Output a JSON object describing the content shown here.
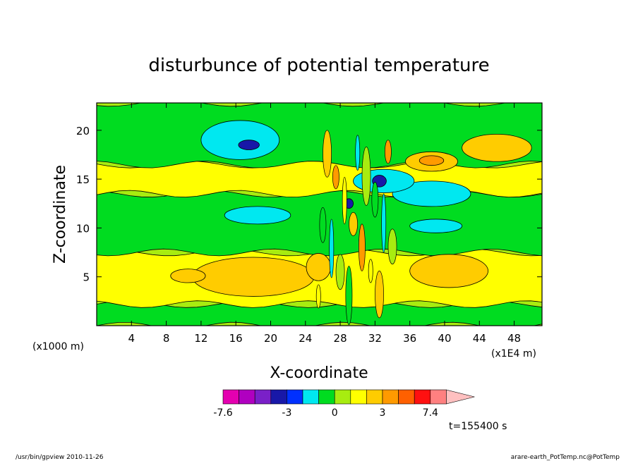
{
  "chart_data": {
    "type": "heatmap",
    "title": "disturbunce of potential temperature",
    "xlabel": "X-coordinate",
    "ylabel": "Z-coordinate",
    "x_unit_left": "(x1000 m)",
    "x_unit_right": "(x1E4 m)",
    "xlim": [
      0,
      51.2
    ],
    "ylim": [
      0,
      22.8
    ],
    "xticks": [
      4,
      8,
      12,
      16,
      20,
      24,
      28,
      32,
      36,
      40,
      44,
      48
    ],
    "yticks": [
      5,
      10,
      15,
      20
    ],
    "time_label": "t=155400 s",
    "colorbar": {
      "levels": [
        -7.6,
        -6.6,
        -5.6,
        -4.6,
        -3.0,
        -2.0,
        -1.0,
        0,
        1.0,
        2.0,
        3.0,
        4.0,
        5.0,
        7.4
      ],
      "tick_labels": [
        "-7.6",
        "-3",
        "0",
        "3",
        "7.4"
      ],
      "tick_values": [
        -7.6,
        -3,
        0,
        3,
        7.4
      ],
      "colors": [
        "#e400b0",
        "#b000c0",
        "#7a20c8",
        "#1818a8",
        "#0030ff",
        "#00e8f0",
        "#00dc20",
        "#a8ec10",
        "#ffff00",
        "#ffcc00",
        "#ff9a00",
        "#ff6000",
        "#ff1010",
        "#ff8080",
        "#ffc0c0"
      ]
    },
    "fields": {
      "background": {
        "value": 0.5,
        "color": "#a8ec10"
      },
      "bands": [
        {
          "z_range": [
            0,
            2.2
          ],
          "value": 0,
          "color": "#00dc20"
        },
        {
          "z_range": [
            2.2,
            7.5
          ],
          "value": 1.5,
          "color": "#ffff00"
        },
        {
          "z_range": [
            7.5,
            13.5
          ],
          "value": 0,
          "color": "#00dc20"
        },
        {
          "z_range": [
            13.5,
            16.5
          ],
          "value": 1.5,
          "color": "#ffff00"
        },
        {
          "z_range": [
            16.5,
            22.8
          ],
          "value": 0,
          "color": "#00dc20"
        }
      ],
      "blobs": [
        {
          "x": 18,
          "z": 5.0,
          "rx": 7.0,
          "rz": 2.0,
          "value": 2.2,
          "color": "#ffcc00"
        },
        {
          "x": 10.5,
          "z": 5.1,
          "rx": 2.0,
          "rz": 0.7,
          "value": 2.2,
          "color": "#ffcc00"
        },
        {
          "x": 40.5,
          "z": 5.6,
          "rx": 4.5,
          "rz": 1.7,
          "value": 2.2,
          "color": "#ffcc00"
        },
        {
          "x": 25.5,
          "z": 6.0,
          "rx": 1.4,
          "rz": 1.4,
          "value": 2.2,
          "color": "#ffcc00"
        },
        {
          "x": 16.5,
          "z": 19.0,
          "rx": 4.5,
          "rz": 2.0,
          "value": -1.5,
          "color": "#00e8f0"
        },
        {
          "x": 17.5,
          "z": 18.5,
          "rx": 1.2,
          "rz": 0.5,
          "value": -4.0,
          "color": "#1818a8"
        },
        {
          "x": 38.5,
          "z": 13.5,
          "rx": 4.5,
          "rz": 1.3,
          "value": -1.5,
          "color": "#00e8f0"
        },
        {
          "x": 39.0,
          "z": 10.2,
          "rx": 3.0,
          "rz": 0.7,
          "value": -1.5,
          "color": "#00e8f0"
        },
        {
          "x": 18.5,
          "z": 11.3,
          "rx": 3.8,
          "rz": 0.9,
          "value": -1.5,
          "color": "#00e8f0"
        },
        {
          "x": 33.0,
          "z": 14.8,
          "rx": 3.5,
          "rz": 1.2,
          "value": -1.5,
          "color": "#00e8f0"
        },
        {
          "x": 32.5,
          "z": 14.8,
          "rx": 0.8,
          "rz": 0.6,
          "value": -4.0,
          "color": "#1818a8"
        },
        {
          "x": 38.5,
          "z": 16.8,
          "rx": 3.0,
          "rz": 1.0,
          "value": 2.2,
          "color": "#ffcc00"
        },
        {
          "x": 38.5,
          "z": 16.9,
          "rx": 1.4,
          "rz": 0.5,
          "value": 3.5,
          "color": "#ff9a00"
        },
        {
          "x": 46.0,
          "z": 18.2,
          "rx": 4.0,
          "rz": 1.4,
          "value": 2.2,
          "color": "#ffcc00"
        },
        {
          "x": 29.0,
          "z": 12.5,
          "rx": 0.5,
          "rz": 0.5,
          "value": -4.0,
          "color": "#1818a8"
        }
      ]
    }
  },
  "footer": {
    "left": "/usr/bin/gpview  2010-11-26",
    "right": "arare-earth_PotTemp.nc@PotTemp"
  }
}
